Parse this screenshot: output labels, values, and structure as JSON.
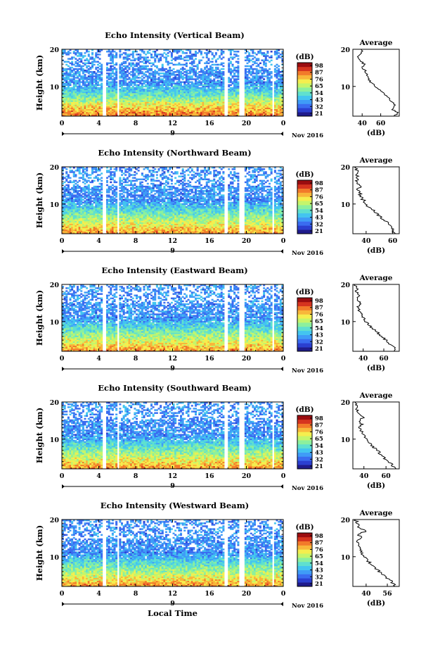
{
  "figure": {
    "date_label": "Nov 2016",
    "bottom_xlabel": "Local Time"
  },
  "colormap": [
    "#1f1b8c",
    "#2b3fd0",
    "#3a6cf0",
    "#3f9cf7",
    "#43c5f0",
    "#5fe0cf",
    "#8cf09d",
    "#c5f56b",
    "#f5ee4e",
    "#f8b73a",
    "#f27a2a",
    "#d6341f",
    "#9b0d10"
  ],
  "chart_data": [
    {
      "type": "heatmap",
      "title": "Echo Intensity (Vertical Beam)",
      "ylabel": "Height (km)",
      "y_ticks": [
        "20",
        "10"
      ],
      "ylim": [
        2,
        20
      ],
      "x_ticks": [
        "0",
        "4",
        "8",
        "12",
        "16",
        "20",
        "0"
      ],
      "xlim": [
        0,
        24
      ],
      "date_tick": "9",
      "colorbar": {
        "label": "(dB)",
        "ticks": [
          "98",
          "87",
          "76",
          "65",
          "54",
          "43",
          "32",
          "21"
        ]
      },
      "data_gaps_hours": [
        [
          4.4,
          4.75
        ],
        [
          5.9,
          6.25
        ],
        [
          17.6,
          18.0
        ],
        [
          19.3,
          19.7
        ],
        [
          22.8,
          23.05
        ]
      ],
      "average": {
        "title": "Average",
        "xlabel": "(dB)",
        "x_ticks": [
          "40",
          "60"
        ],
        "xlim": [
          30,
          80
        ],
        "y_ticks": [
          "20",
          "10"
        ],
        "height_km": [
          2,
          3,
          4,
          5,
          6,
          7,
          8,
          9,
          10,
          11,
          12,
          13,
          14,
          15,
          16,
          17,
          18,
          19,
          20
        ],
        "db": [
          75,
          78,
          72,
          76,
          70,
          68,
          64,
          60,
          55,
          50,
          47,
          45,
          44,
          40,
          42,
          38,
          36,
          40,
          39
        ]
      }
    },
    {
      "type": "heatmap",
      "title": "Echo Intensity (Northward Beam)",
      "ylabel": "Height (km)",
      "y_ticks": [
        "20",
        "10"
      ],
      "ylim": [
        2,
        20
      ],
      "x_ticks": [
        "0",
        "4",
        "8",
        "12",
        "16",
        "20",
        "0"
      ],
      "xlim": [
        0,
        24
      ],
      "date_tick": "9",
      "colorbar": {
        "label": "(dB)",
        "ticks": [
          "98",
          "87",
          "76",
          "65",
          "54",
          "43",
          "32",
          "21"
        ]
      },
      "data_gaps_hours": [
        [
          4.4,
          4.75
        ],
        [
          5.9,
          6.25
        ],
        [
          17.6,
          18.0
        ],
        [
          19.3,
          19.7
        ],
        [
          22.8,
          23.05
        ]
      ],
      "average": {
        "title": "Average",
        "xlabel": "(dB)",
        "x_ticks": [
          "40",
          "60"
        ],
        "xlim": [
          30,
          65
        ],
        "y_ticks": [
          "20",
          "10"
        ],
        "height_km": [
          2,
          3,
          4,
          5,
          6,
          7,
          8,
          9,
          10,
          11,
          12,
          13,
          14,
          15,
          16,
          17,
          18,
          19,
          20
        ],
        "db": [
          62,
          60,
          58,
          56,
          52,
          49,
          46,
          43,
          40,
          38,
          36,
          35,
          34,
          36,
          33,
          34,
          32,
          33,
          32
        ]
      }
    },
    {
      "type": "heatmap",
      "title": "Echo Intensity (Eastward Beam)",
      "ylabel": "Height (km)",
      "y_ticks": [
        "20",
        "10"
      ],
      "ylim": [
        2,
        20
      ],
      "x_ticks": [
        "0",
        "4",
        "8",
        "12",
        "16",
        "20",
        "0"
      ],
      "xlim": [
        0,
        24
      ],
      "date_tick": "9",
      "colorbar": {
        "label": "(dB)",
        "ticks": [
          "98",
          "87",
          "76",
          "65",
          "54",
          "43",
          "32",
          "21"
        ]
      },
      "data_gaps_hours": [
        [
          4.4,
          4.75
        ],
        [
          5.9,
          6.25
        ],
        [
          17.6,
          18.0
        ],
        [
          19.3,
          19.7
        ],
        [
          22.8,
          23.05
        ]
      ],
      "average": {
        "title": "Average",
        "xlabel": "(dB)",
        "x_ticks": [
          "40",
          "60"
        ],
        "xlim": [
          30,
          75
        ],
        "y_ticks": [
          "20",
          "10"
        ],
        "height_km": [
          2,
          3,
          4,
          5,
          6,
          7,
          8,
          9,
          10,
          11,
          12,
          13,
          14,
          15,
          16,
          17,
          18,
          19,
          20
        ],
        "db": [
          70,
          72,
          66,
          62,
          58,
          54,
          50,
          46,
          42,
          40,
          38,
          36,
          35,
          38,
          34,
          36,
          33,
          34,
          32
        ]
      }
    },
    {
      "type": "heatmap",
      "title": "Echo Intensity (Southward Beam)",
      "ylabel": "Height (km)",
      "y_ticks": [
        "20",
        "10"
      ],
      "ylim": [
        2,
        20
      ],
      "x_ticks": [
        "0",
        "4",
        "8",
        "12",
        "16",
        "20",
        "0"
      ],
      "xlim": [
        0,
        24
      ],
      "date_tick": "9",
      "colorbar": {
        "label": "(dB)",
        "ticks": [
          "98",
          "87",
          "76",
          "65",
          "54",
          "43",
          "32",
          "21"
        ]
      },
      "data_gaps_hours": [
        [
          4.4,
          4.75
        ],
        [
          5.9,
          6.25
        ],
        [
          17.6,
          18.0
        ],
        [
          19.3,
          19.7
        ],
        [
          22.8,
          23.05
        ]
      ],
      "average": {
        "title": "Average",
        "xlabel": "(dB)",
        "x_ticks": [
          "40",
          "60"
        ],
        "xlim": [
          30,
          72
        ],
        "y_ticks": [
          "20",
          "10"
        ],
        "height_km": [
          2,
          3,
          4,
          5,
          6,
          7,
          8,
          9,
          10,
          11,
          12,
          13,
          14,
          15,
          16,
          17,
          18,
          19,
          20
        ],
        "db": [
          68,
          66,
          62,
          58,
          55,
          52,
          48,
          45,
          42,
          40,
          38,
          36,
          38,
          36,
          40,
          35,
          33,
          34,
          32
        ]
      }
    },
    {
      "type": "heatmap",
      "title": "Echo Intensity (Westward Beam)",
      "ylabel": "Height (km)",
      "y_ticks": [
        "20",
        "10"
      ],
      "ylim": [
        2,
        20
      ],
      "x_ticks": [
        "0",
        "4",
        "8",
        "12",
        "16",
        "20",
        "0"
      ],
      "xlim": [
        0,
        24
      ],
      "date_tick": "9",
      "colorbar": {
        "label": "(dB)",
        "ticks": [
          "98",
          "87",
          "76",
          "65",
          "54",
          "43",
          "32",
          "21"
        ]
      },
      "data_gaps_hours": [
        [
          4.4,
          4.75
        ],
        [
          5.9,
          6.25
        ],
        [
          17.6,
          18.0
        ],
        [
          19.3,
          19.7
        ],
        [
          22.8,
          23.05
        ]
      ],
      "average": {
        "title": "Average",
        "xlabel": "(dB)",
        "x_ticks": [
          "40",
          "56"
        ],
        "xlim": [
          30,
          65
        ],
        "y_ticks": [
          "20",
          "10"
        ],
        "height_km": [
          2,
          3,
          4,
          5,
          6,
          7,
          8,
          9,
          10,
          11,
          12,
          13,
          14,
          15,
          16,
          17,
          18,
          19,
          20
        ],
        "db": [
          62,
          60,
          57,
          54,
          50,
          47,
          44,
          41,
          39,
          37,
          36,
          35,
          34,
          36,
          34,
          40,
          33,
          34,
          32
        ]
      }
    }
  ]
}
